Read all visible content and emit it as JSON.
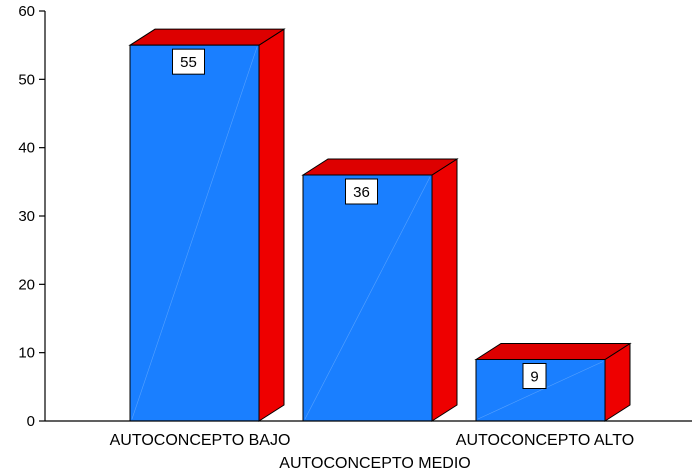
{
  "chart_data": {
    "type": "bar",
    "categories": [
      "AUTOCONCEPTO BAJO",
      "AUTOCONCEPTO MEDIO",
      "AUTOCONCEPTO ALTO"
    ],
    "values": [
      55,
      36,
      9
    ],
    "data_labels": [
      "55",
      "36",
      "9"
    ],
    "y_ticks": [
      "0",
      "10",
      "20",
      "30",
      "40",
      "50",
      "60"
    ],
    "ylim": [
      0,
      60
    ],
    "title": "",
    "xlabel": "",
    "ylabel": "",
    "grid": false,
    "legend": "none",
    "bar_front_color": "#1a7fff",
    "bar_side_color": "#ee0000",
    "bar_top_color": "#dd0000",
    "label_box_color": "#ffffff"
  }
}
